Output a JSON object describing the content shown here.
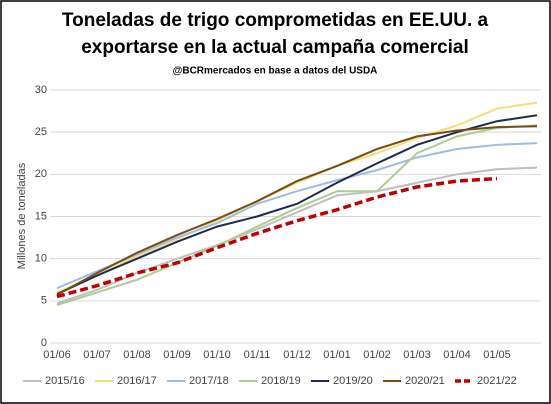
{
  "chart_data": {
    "type": "line",
    "title": [
      "Toneladas de trigo comprometidas en EE.UU. a",
      "exportarse en la actual campaña comercial"
    ],
    "subtitle": "@BCRmercados en base a datos del USDA",
    "y_label": "Millones de toneladas",
    "categories": [
      "01/06",
      "01/07",
      "01/08",
      "01/09",
      "01/10",
      "01/11",
      "01/12",
      "01/01",
      "01/02",
      "01/03",
      "01/04",
      "01/05",
      null
    ],
    "series": [
      {
        "name": "2015/16",
        "color": "#bfbfbf",
        "values": [
          4.7,
          6.3,
          8.3,
          10.0,
          11.6,
          13.5,
          15.5,
          17.5,
          18.0,
          19.0,
          20.0,
          20.6,
          20.8
        ]
      },
      {
        "name": "2016/17",
        "color": "#f5df7a",
        "values": [
          6.0,
          8.0,
          10.3,
          12.3,
          14.5,
          16.8,
          19.0,
          21.0,
          22.5,
          24.3,
          25.8,
          27.8,
          28.5
        ]
      },
      {
        "name": "2017/18",
        "color": "#9dbde0",
        "values": [
          6.5,
          8.5,
          10.5,
          12.5,
          14.2,
          16.5,
          18.0,
          19.3,
          20.5,
          22.0,
          23.0,
          23.5,
          23.7
        ]
      },
      {
        "name": "2018/19",
        "color": "#a9cf8e",
        "values": [
          4.5,
          6.0,
          7.5,
          9.5,
          11.5,
          13.8,
          16.0,
          18.0,
          18.0,
          22.5,
          24.5,
          25.5,
          25.8
        ]
      },
      {
        "name": "2019/20",
        "color": "#1f2a4f",
        "values": [
          5.8,
          8.0,
          10.0,
          12.0,
          13.8,
          15.0,
          16.5,
          19.0,
          21.3,
          23.5,
          25.0,
          26.3,
          27.0
        ]
      },
      {
        "name": "2020/21",
        "color": "#7a4a17",
        "values": [
          5.7,
          8.3,
          10.7,
          12.8,
          14.7,
          16.8,
          19.2,
          21.0,
          23.0,
          24.5,
          25.2,
          25.6,
          25.7
        ]
      },
      {
        "name": "2021/22",
        "color": "#c00000",
        "style": "dashed",
        "values": [
          5.5,
          6.8,
          8.3,
          9.5,
          11.3,
          13.0,
          14.5,
          15.8,
          17.3,
          18.5,
          19.2,
          19.5,
          null
        ]
      }
    ],
    "ylim": [
      0,
      30
    ],
    "yticks": [
      0,
      5,
      10,
      15,
      20,
      25,
      30
    ],
    "grid": true,
    "legend": "bottom"
  }
}
